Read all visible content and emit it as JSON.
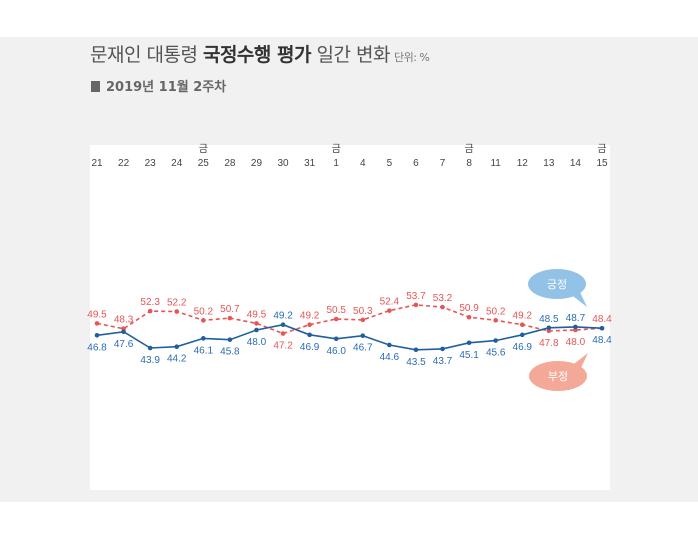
{
  "header": {
    "title_light": "문재인 대통령",
    "title_bold": "국정수행 평가",
    "title_tail": "일간 변화",
    "unit": "단위: %",
    "subtitle": "2019년 11월 2주차"
  },
  "legend": {
    "positive": "긍정",
    "negative": "부정"
  },
  "colors": {
    "positive": "#1f5fa0",
    "positive_text": "#2a6db5",
    "negative": "#e85555",
    "bubble_positive": "#92c2e6",
    "bubble_negative": "#f4a898"
  },
  "chart_data": {
    "type": "line",
    "categories": [
      "21",
      "22",
      "23",
      "24",
      "25",
      "28",
      "29",
      "30",
      "31",
      "1",
      "4",
      "5",
      "6",
      "7",
      "8",
      "11",
      "12",
      "13",
      "14",
      "15"
    ],
    "friday_marker": "금",
    "friday_categories": [
      "25",
      "1",
      "8",
      "15"
    ],
    "series": [
      {
        "name": "긍정",
        "values": [
          46.8,
          47.6,
          43.9,
          44.2,
          46.1,
          45.8,
          48.0,
          49.2,
          46.9,
          46.0,
          46.7,
          44.6,
          43.5,
          43.7,
          45.1,
          45.6,
          46.9,
          48.5,
          48.7,
          48.4
        ]
      },
      {
        "name": "부정",
        "values": [
          49.5,
          48.3,
          52.3,
          52.2,
          50.2,
          50.7,
          49.5,
          47.2,
          49.2,
          50.5,
          50.3,
          52.4,
          53.7,
          53.2,
          50.9,
          50.2,
          49.2,
          47.8,
          48.0,
          48.4
        ]
      }
    ],
    "ylim": [
      25,
      75
    ],
    "grid": false
  }
}
